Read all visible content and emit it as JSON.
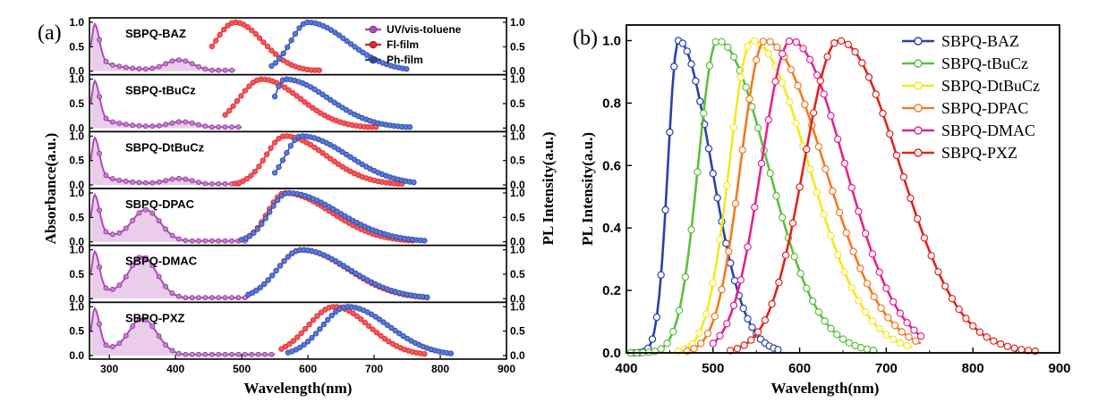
{
  "chart_data": [
    {
      "panel": "(a)",
      "type": "line",
      "xlabel": "Wavelength(nm)",
      "ylabel_left": "Absorbance(a.u.)",
      "ylabel_right": "PL Intensity(a.u.)",
      "xlim": [
        270,
        900
      ],
      "xticks": [
        "300",
        "400",
        "500",
        "600",
        "700",
        "800",
        "900"
      ],
      "ylim": [
        0,
        1
      ],
      "yticks": [
        "0.0",
        "0.5",
        "1.0"
      ],
      "legend": [
        {
          "name": "UV/vis-toluene",
          "color": "#b04ab8"
        },
        {
          "name": "Fl-film",
          "color": "#e8262a"
        },
        {
          "name": "Ph-film",
          "color": "#2e4aa8"
        }
      ],
      "subplots": [
        {
          "title": "SBPQ-BAZ",
          "abs_peak2": [
            405,
            0.22
          ],
          "abs_end": 470,
          "fl": [
            490,
            30,
            42,
            455,
            620
          ],
          "ph": [
            600,
            26,
            60,
            545,
            750
          ]
        },
        {
          "title": "SBPQ-tBuCz",
          "abs_peak2": [
            410,
            0.12
          ],
          "abs_end": 480,
          "fl": [
            530,
            34,
            58,
            475,
            705
          ],
          "ph": [
            565,
            16,
            66,
            550,
            755
          ]
        },
        {
          "title": "SBPQ-DtBuCz",
          "abs_peak2": [
            405,
            0.12
          ],
          "abs_end": 480,
          "fl": [
            565,
            28,
            62,
            490,
            745
          ],
          "ph": [
            590,
            24,
            70,
            550,
            760
          ]
        },
        {
          "title": "SBPQ-DPAC",
          "abs_peak2": [
            355,
            0.62
          ],
          "abs_end": 490,
          "fl": [
            565,
            26,
            70,
            500,
            760
          ],
          "ph": [
            570,
            28,
            76,
            500,
            780
          ]
        },
        {
          "title": "SBPQ-DMAC",
          "abs_peak2": [
            350,
            0.82
          ],
          "abs_end": 490,
          "fl": [
            590,
            36,
            70,
            510,
            780
          ],
          "ph": [
            590,
            36,
            72,
            510,
            780
          ]
        },
        {
          "title": "SBPQ-PXZ",
          "abs_peak2": [
            350,
            0.72
          ],
          "abs_end": 530,
          "fl": [
            640,
            40,
            52,
            560,
            780
          ],
          "ph": [
            660,
            38,
            62,
            570,
            820
          ]
        }
      ]
    },
    {
      "panel": "(b)",
      "type": "line",
      "xlabel": "Wavelength(nm)",
      "ylabel": "PL Intensity(a.u.)",
      "xlim": [
        400,
        900
      ],
      "xticks": [
        "400",
        "500",
        "600",
        "700",
        "800",
        "900"
      ],
      "ylim": [
        0,
        1.05
      ],
      "yticks": [
        "0.0",
        "0.2",
        "0.4",
        "0.6",
        "0.8",
        "1.0"
      ],
      "series": [
        {
          "name": "SBPQ-BAZ",
          "color": "#2b3fae",
          "peak": 460,
          "wl": 12,
          "wr": 38,
          "xmin": 405,
          "xmax": 575,
          "step": 5
        },
        {
          "name": "SBPQ-tBuCz",
          "color": "#5cbf3e",
          "peak": 505,
          "wl": 22,
          "wr": 58,
          "xmin": 405,
          "xmax": 690,
          "step": 7
        },
        {
          "name": "SBPQ-DtBuCz",
          "color": "#f2ea1c",
          "peak": 545,
          "wl": 26,
          "wr": 65,
          "xmin": 460,
          "xmax": 730,
          "step": 8
        },
        {
          "name": "SBPQ-DPAC",
          "color": "#f27a22",
          "peak": 560,
          "wl": 28,
          "wr": 68,
          "xmin": 470,
          "xmax": 740,
          "step": 8
        },
        {
          "name": "SBPQ-DMAC",
          "color": "#e7208f",
          "peak": 590,
          "wl": 34,
          "wr": 62,
          "xmin": 500,
          "xmax": 745,
          "step": 8
        },
        {
          "name": "SBPQ-PXZ",
          "color": "#e0231e",
          "peak": 645,
          "wl": 40,
          "wr": 70,
          "xmin": 520,
          "xmax": 875,
          "step": 8
        }
      ]
    }
  ]
}
